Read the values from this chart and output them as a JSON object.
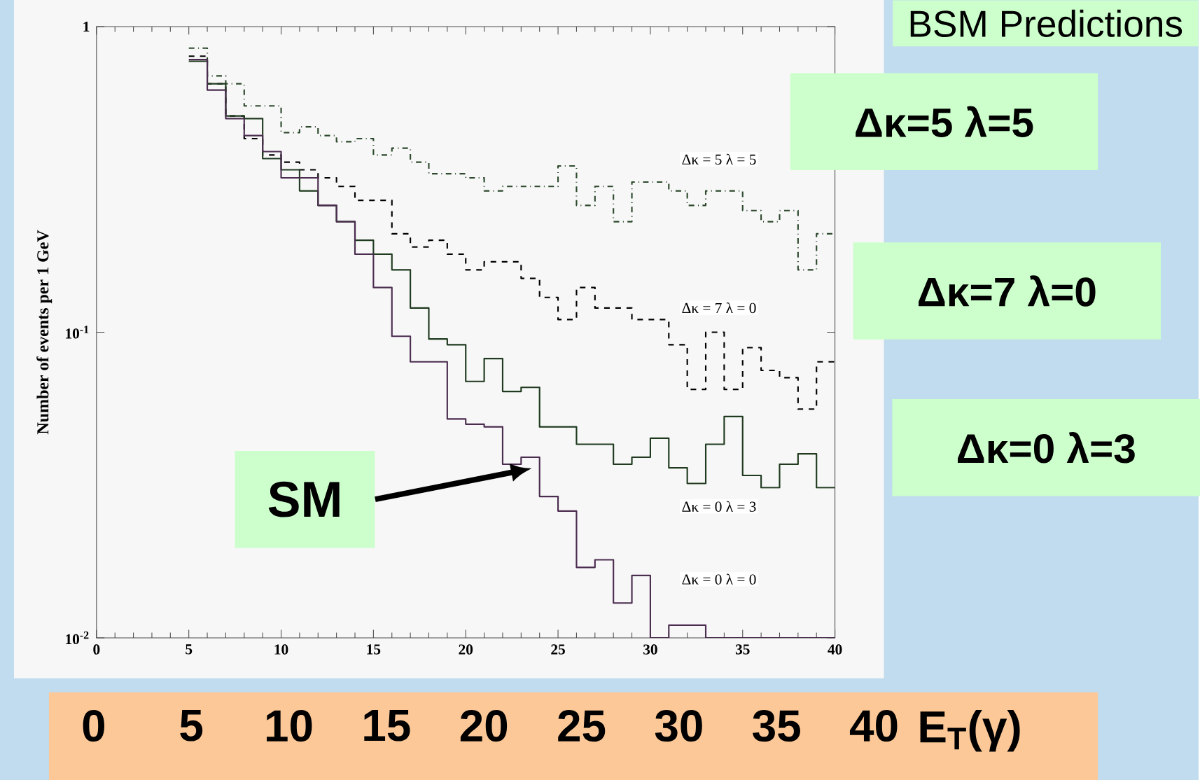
{
  "chart_data": {
    "type": "histogram",
    "title": "BSM Predictions",
    "ylabel": "Number of events per 1 GeV",
    "x2label": "E$_{T}$(γ)",
    "bins": [
      5,
      6,
      7,
      8,
      9,
      10,
      11,
      12,
      13,
      14,
      15,
      16,
      17,
      18,
      19,
      20,
      21,
      22,
      23,
      24,
      25,
      26,
      27,
      28,
      29,
      30,
      31,
      32,
      33,
      34,
      35,
      36,
      37,
      38,
      39,
      40
    ],
    "series": [
      {
        "name": "Δκ = 5  λ = 5",
        "color": "#2e4a2e",
        "line_style": "dotted",
        "values": [
          0.85,
          0.69,
          0.65,
          0.55,
          0.55,
          0.45,
          0.47,
          0.44,
          0.42,
          0.43,
          0.38,
          0.4,
          0.36,
          0.33,
          0.33,
          0.32,
          0.29,
          0.3,
          0.3,
          0.3,
          0.35,
          0.26,
          0.3,
          0.23,
          0.31,
          0.31,
          0.29,
          0.26,
          0.29,
          0.29,
          0.25,
          0.23,
          0.25,
          0.16,
          0.21
        ]
      },
      {
        "name": "Δκ = 7  λ = 0",
        "color": "#000000",
        "line_style": "dashed",
        "values": [
          0.8,
          0.65,
          0.51,
          0.43,
          0.38,
          0.36,
          0.34,
          0.32,
          0.3,
          0.27,
          0.27,
          0.21,
          0.19,
          0.2,
          0.18,
          0.16,
          0.17,
          0.17,
          0.15,
          0.13,
          0.11,
          0.14,
          0.12,
          0.12,
          0.11,
          0.11,
          0.091,
          0.065,
          0.1,
          0.065,
          0.089,
          0.075,
          0.071,
          0.056,
          0.08
        ]
      },
      {
        "name": "Δκ = 0  λ = 3",
        "color": "#1f3a1f",
        "line_style": "solid",
        "values": [
          0.77,
          0.65,
          0.51,
          0.5,
          0.37,
          0.34,
          0.29,
          0.26,
          0.23,
          0.2,
          0.18,
          0.16,
          0.12,
          0.095,
          0.091,
          0.069,
          0.082,
          0.064,
          0.066,
          0.049,
          0.049,
          0.043,
          0.043,
          0.037,
          0.039,
          0.045,
          0.036,
          0.032,
          0.043,
          0.053,
          0.034,
          0.031,
          0.037,
          0.04,
          0.031
        ]
      },
      {
        "name": "Δκ = 0  λ = 0",
        "color": "#4b2d4f",
        "line_style": "solid",
        "values": [
          0.78,
          0.62,
          0.5,
          0.44,
          0.39,
          0.32,
          0.32,
          0.26,
          0.23,
          0.18,
          0.14,
          0.097,
          0.08,
          0.08,
          0.052,
          0.05,
          0.049,
          0.037,
          0.039,
          0.029,
          0.026,
          0.017,
          0.018,
          0.013,
          0.016,
          0.01,
          0.011,
          0.011,
          0.01,
          0.01,
          0.01,
          0.01,
          0.01,
          0.01,
          0.01
        ]
      }
    ],
    "xlim": [
      0,
      40
    ],
    "xticks": [
      0,
      5,
      10,
      15,
      20,
      25,
      30,
      35,
      40
    ],
    "ylim": [
      0.01,
      1
    ],
    "log": "y",
    "yticks": [
      1,
      {
        "value": 0.1,
        "label": "10$^{-1}$"
      },
      {
        "value": 0.01,
        "label": "10$^{-2}$"
      }
    ],
    "x2lim": [
      0,
      40
    ],
    "x2ticks": [
      0,
      5,
      10,
      15,
      20,
      25,
      30,
      35,
      40
    ],
    "annotations": [
      "Δκ=5 λ=5",
      "Δκ=7 λ=0",
      "Δκ=0 λ=3",
      "SM"
    ]
  }
}
